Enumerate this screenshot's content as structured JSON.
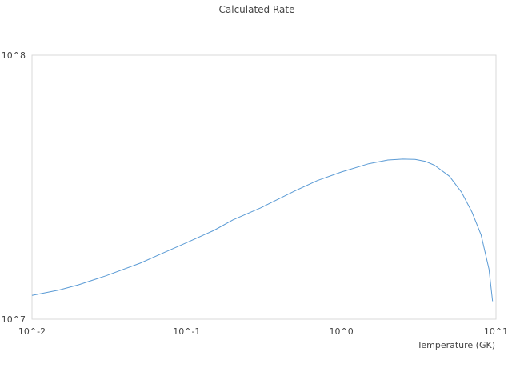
{
  "chart_data": {
    "type": "line",
    "title": "Calculated Rate",
    "xlabel": "Temperature (GK)",
    "ylabel": "",
    "x_scale": "log",
    "y_scale": "log",
    "xlim": [
      0.01,
      10
    ],
    "ylim": [
      10000000,
      100000000
    ],
    "x_ticks": [
      {
        "value": 0.01,
        "label": "10^-2"
      },
      {
        "value": 0.1,
        "label": "10^-1"
      },
      {
        "value": 1,
        "label": "10^0"
      },
      {
        "value": 10,
        "label": "10^1"
      }
    ],
    "y_ticks": [
      {
        "value": 10000000,
        "label": "10^7"
      },
      {
        "value": 100000000,
        "label": "10^8"
      }
    ],
    "grid": false,
    "legend": false,
    "series": [
      {
        "color": "#5b9bd5",
        "x": [
          0.01,
          0.015,
          0.02,
          0.03,
          0.05,
          0.07,
          0.1,
          0.15,
          0.2,
          0.3,
          0.5,
          0.7,
          1.0,
          1.5,
          2.0,
          2.5,
          3.0,
          3.5,
          4.0,
          5.0,
          6.0,
          7.0,
          8.0,
          9.0,
          9.5
        ],
        "y": [
          12300000,
          12900000,
          13500000,
          14600000,
          16300000,
          17800000,
          19500000,
          21700000,
          23800000,
          26400000,
          30600000,
          33500000,
          36100000,
          38800000,
          40100000,
          40400000,
          40300000,
          39600000,
          38300000,
          34800000,
          30200000,
          25400000,
          20900000,
          15500000,
          11700000
        ]
      }
    ]
  }
}
